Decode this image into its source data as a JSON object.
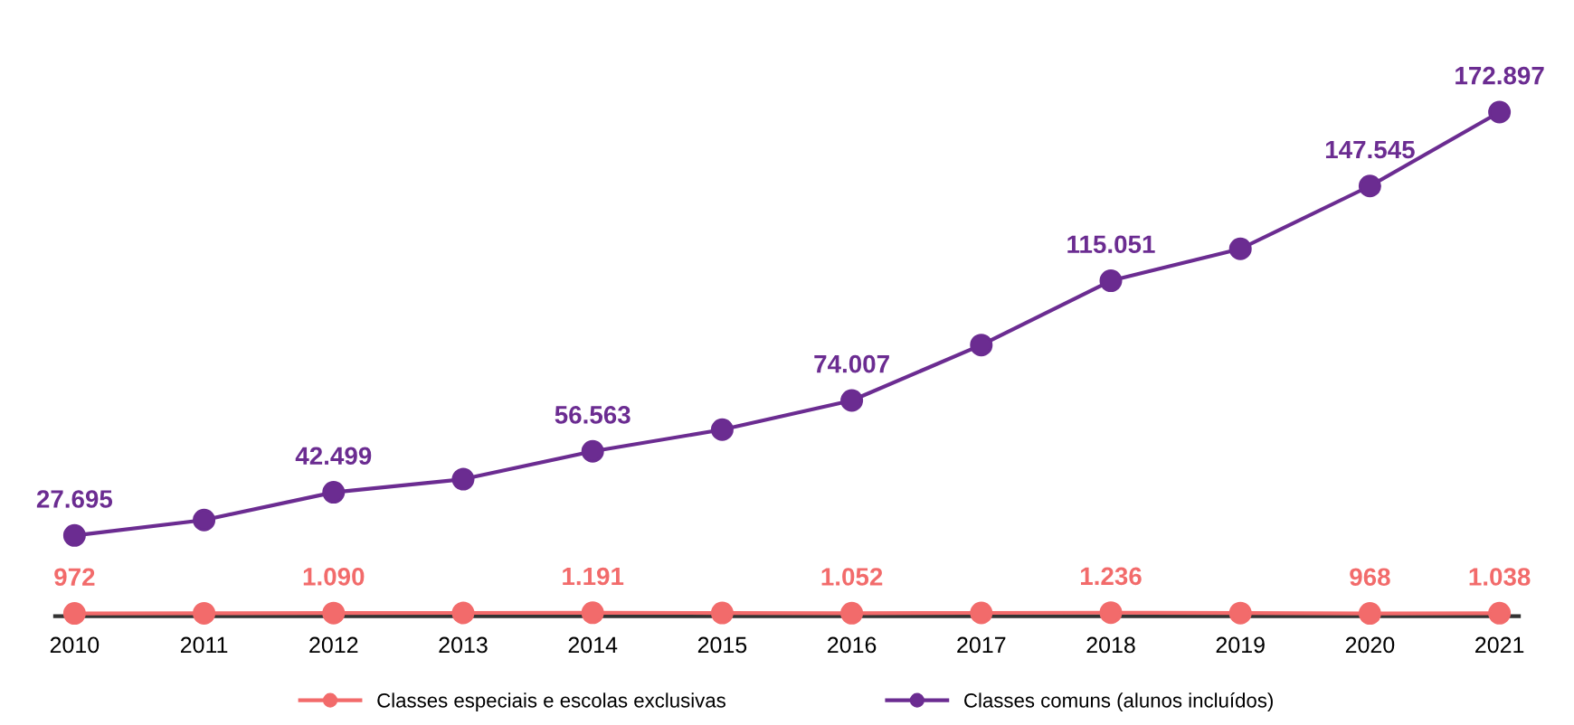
{
  "chart_data": {
    "type": "line",
    "categories": [
      "2010",
      "2011",
      "2012",
      "2013",
      "2014",
      "2015",
      "2016",
      "2017",
      "2018",
      "2019",
      "2020",
      "2021"
    ],
    "series": [
      {
        "name": "Classes especiais e escolas exclusivas",
        "color": "#f26b6b",
        "values": [
          972,
          1030,
          1090,
          1140,
          1191,
          1120,
          1052,
          1140,
          1236,
          1100,
          968,
          1038
        ],
        "value_labels": [
          "972",
          null,
          "1.090",
          null,
          "1.191",
          null,
          "1.052",
          null,
          "1.236",
          null,
          "968",
          "1.038"
        ]
      },
      {
        "name": "Classes comuns (alunos incluídos)",
        "color": "#6b2c91",
        "values": [
          27695,
          33000,
          42499,
          47000,
          56563,
          64000,
          74007,
          93000,
          115051,
          126000,
          147545,
          172897
        ],
        "value_labels": [
          "27.695",
          null,
          "42.499",
          null,
          "56.563",
          null,
          "74.007",
          null,
          "115.051",
          null,
          "147.545",
          "172.897"
        ]
      }
    ],
    "tick_labels": "x",
    "grid": false,
    "legend": "bottom",
    "marker": "circle",
    "line_style": "solid"
  }
}
